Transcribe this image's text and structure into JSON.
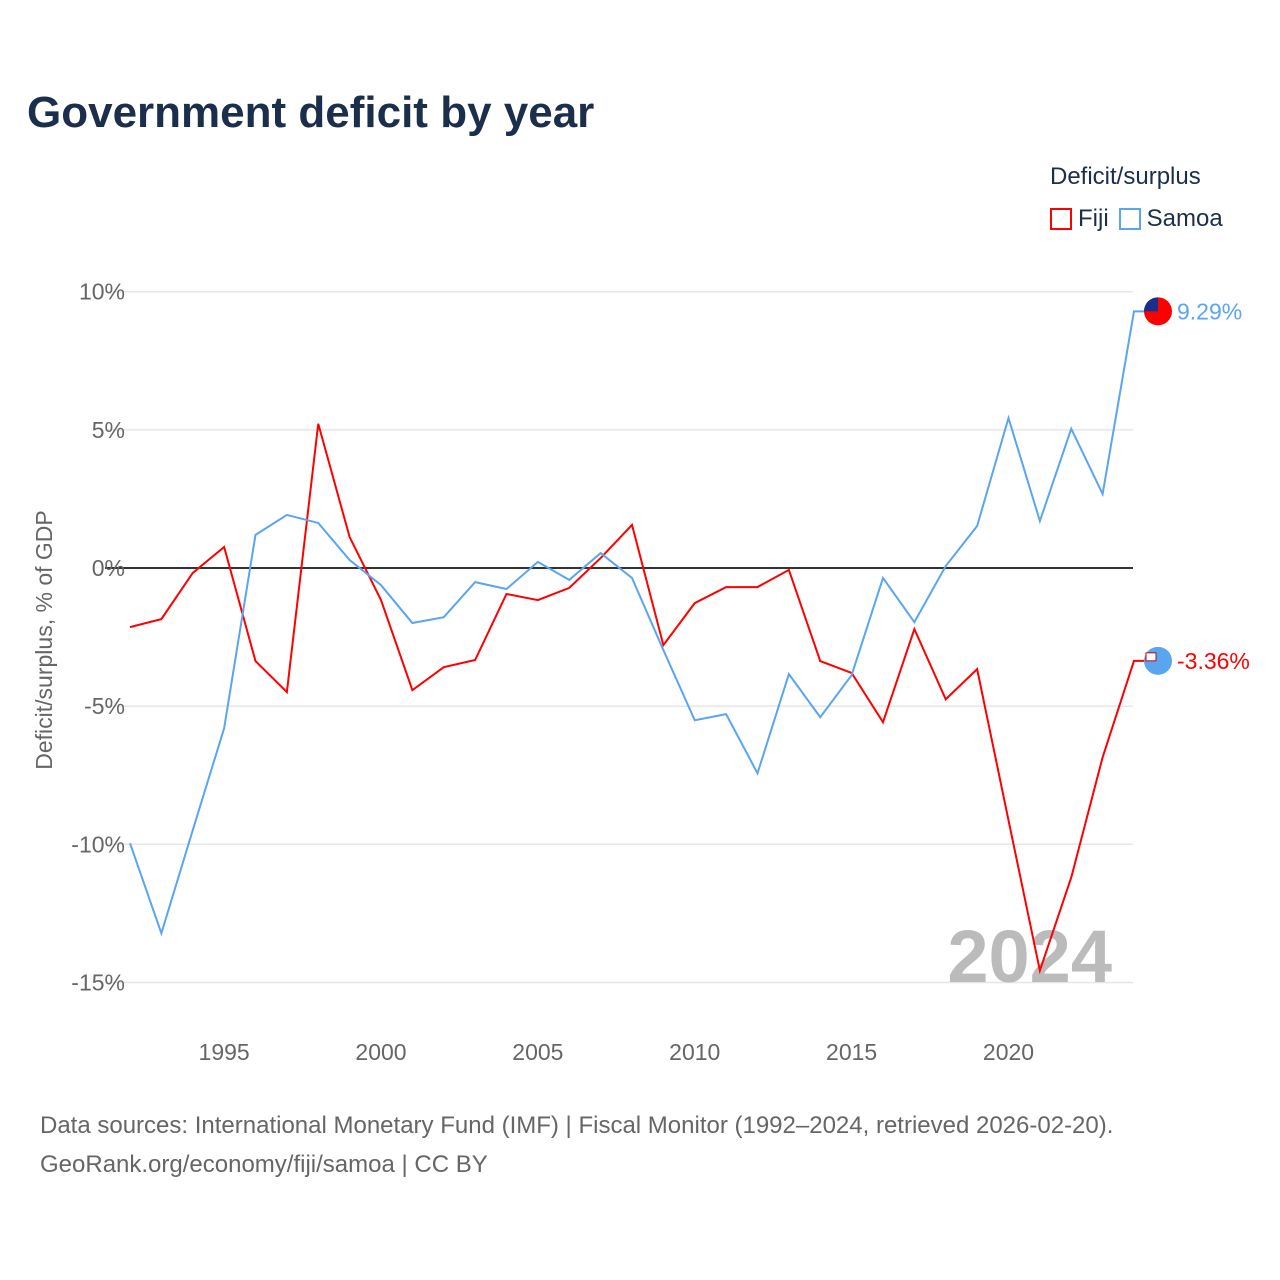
{
  "title": "Government deficit by year",
  "legend": {
    "title": "Deficit/surplus",
    "items": [
      "Fiji",
      "Samoa"
    ]
  },
  "source_line1": "Data sources: International Monetary Fund (IMF) | Fiscal Monitor (1992–2024, retrieved 2026-02-20).",
  "source_line2": "GeoRank.org/economy/fiji/samoa | CC BY",
  "colors": {
    "Fiji": "#ff0000",
    "Samoa": "#5aa5ef",
    "title": "#1b2e4b"
  },
  "chart_data": {
    "type": "line",
    "title": "Government deficit by year",
    "xlabel": "",
    "ylabel": "Deficit/surplus, % of GDP",
    "ylim": [
      -16,
      10.5
    ],
    "xlim": [
      1992,
      2024
    ],
    "yticks": [
      10,
      5,
      0,
      -5,
      -10,
      -15
    ],
    "ytick_labels": [
      "10%",
      "5%",
      "0%",
      "-5%",
      "-10%",
      "-15%"
    ],
    "xticks": [
      1995,
      2000,
      2005,
      2010,
      2015,
      2020
    ],
    "xtick_labels": [
      "1995",
      "2000",
      "2005",
      "2010",
      "2015",
      "2020"
    ],
    "year_watermark": "2024",
    "x": [
      1992,
      1993,
      1994,
      1995,
      1996,
      1997,
      1998,
      1999,
      2000,
      2001,
      2002,
      2003,
      2004,
      2005,
      2006,
      2007,
      2008,
      2009,
      2010,
      2011,
      2012,
      2013,
      2014,
      2015,
      2016,
      2017,
      2018,
      2019,
      2020,
      2021,
      2022,
      2023,
      2024
    ],
    "series": [
      {
        "name": "Fiji",
        "end_label": "-3.36%",
        "values": [
          -2.14,
          -1.85,
          -0.18,
          0.76,
          -3.37,
          -4.49,
          5.22,
          1.12,
          -1.16,
          -4.42,
          -3.59,
          -3.33,
          -0.94,
          -1.16,
          -0.72,
          0.36,
          1.56,
          -2.79,
          -1.27,
          -0.69,
          -0.69,
          -0.07,
          -3.37,
          -3.8,
          -5.58,
          -2.21,
          -4.75,
          -3.66,
          -9.13,
          -14.57,
          -11.2,
          -6.85,
          -3.36
        ]
      },
      {
        "name": "Samoa",
        "end_label": "9.29%",
        "values": [
          -9.96,
          -13.22,
          -9.49,
          -5.8,
          1.2,
          1.92,
          1.63,
          0.29,
          -0.62,
          -1.99,
          -1.78,
          -0.51,
          -0.76,
          0.22,
          -0.43,
          0.54,
          -0.36,
          -2.97,
          -5.51,
          -5.29,
          -7.43,
          -3.84,
          -5.4,
          -3.88,
          -0.36,
          -1.96,
          0.07,
          1.52,
          5.43,
          1.7,
          5.04,
          2.68,
          9.29
        ]
      }
    ]
  }
}
